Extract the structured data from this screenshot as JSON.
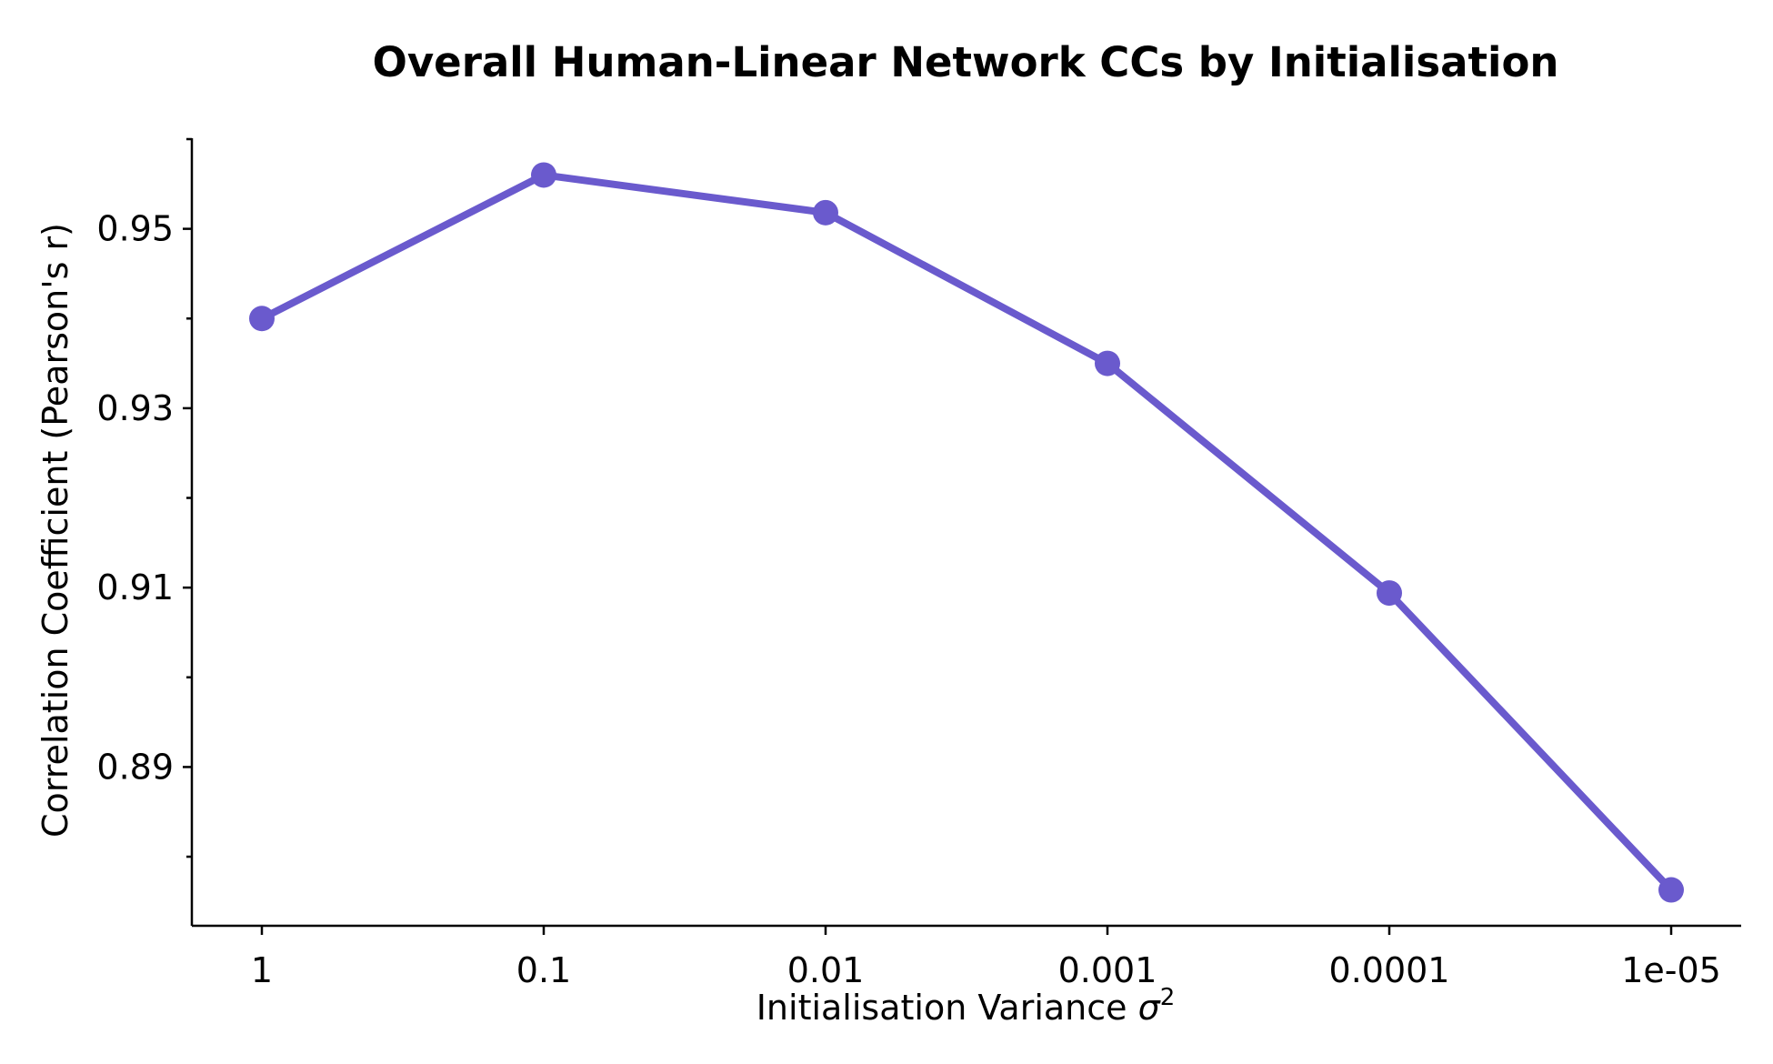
{
  "chart_data": {
    "type": "line",
    "title": "Overall Human-Linear Network CCs by Initialisation",
    "xlabel": "Initialisation Variance",
    "xlabel_symbol": "σ",
    "xlabel_superscript": "2",
    "ylabel": "Correlation Coefficient (Pearson's r)",
    "categories": [
      "1",
      "0.1",
      "0.01",
      "0.001",
      "0.0001",
      "1e-05"
    ],
    "series": [
      {
        "values": [
          0.94,
          0.956,
          0.9518,
          0.935,
          0.9094,
          0.8763
        ],
        "color": "#6a5acd"
      }
    ],
    "ylim": [
      0.8723,
      0.9601
    ],
    "yticks_major": [
      0.89,
      0.91,
      0.93,
      0.95
    ],
    "yticks_major_labels": [
      "0.89",
      "0.91",
      "0.93",
      "0.95"
    ],
    "yticks_minor": [
      0.88,
      0.9,
      0.92,
      0.94,
      0.96
    ],
    "grid": false,
    "legend": "none"
  }
}
